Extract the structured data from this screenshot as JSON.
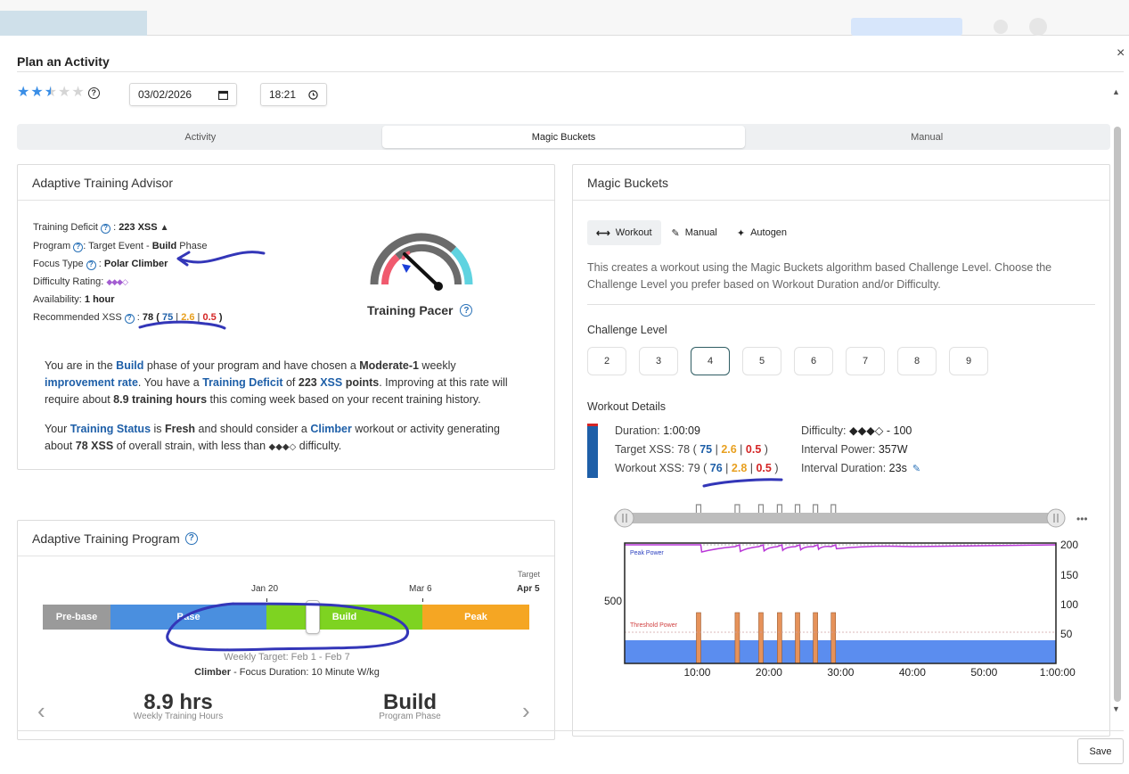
{
  "modal": {
    "title": "Plan an Activity",
    "save_label": "Save",
    "close_label": "×"
  },
  "header": {
    "rating": {
      "value": 2.5,
      "max": 5
    },
    "date": "03/02/2026",
    "time": "18:21"
  },
  "tabs": [
    {
      "label": "Activity",
      "active": false
    },
    {
      "label": "Magic Buckets",
      "active": true
    },
    {
      "label": "Manual",
      "active": false
    }
  ],
  "advisor": {
    "title": "Adaptive Training Advisor",
    "deficit_label": "Training Deficit",
    "deficit_value": "223 XSS",
    "program_label": "Program",
    "program_prefix": ": Target Event - ",
    "program_phase": "Build",
    "program_suffix": " Phase",
    "focus_label": "Focus Type",
    "focus_value": "Polar Climber",
    "difficulty_label": "Difficulty Rating:",
    "difficulty_value": "◆◆◆◇",
    "availability_label": "Availability:",
    "availability_value": "1 hour",
    "rec_label": "Recommended XSS",
    "rec_total": "78",
    "rec_low": "75",
    "rec_high": "2.6",
    "rec_peak": "0.5",
    "pacer_label": "Training Pacer",
    "para1": {
      "t1": "You are in the ",
      "phase": "Build",
      "t2": " phase of your program and have chosen a ",
      "choice": "Moderate-1",
      "t3": " weekly ",
      "rate": "improvement rate",
      "t4": ". You have a ",
      "deficit": "Training Deficit",
      "t5": " of ",
      "deficit_value": "223",
      "xss": "XSS",
      "points": " points",
      "t6": ". Improving at this rate will require about ",
      "hours": "8.9 training hours",
      "t7": " this coming week based on your recent training history."
    },
    "para2": {
      "t1": "Your ",
      "status": "Training Status",
      "t2": " is ",
      "status_value": "Fresh",
      "t3": " and should consider a ",
      "climber": "Climber",
      "t4": " workout or activity generating about ",
      "xss": "78 XSS",
      "t5": " of overall strain, with less than ",
      "diamonds": "◆◆◆◇",
      "t6": " difficulty."
    }
  },
  "program": {
    "title": "Adaptive Training Program",
    "phases": [
      {
        "name": "Pre-base",
        "color": "#9a9a9a"
      },
      {
        "name": "Base",
        "color": "#4a8fdf"
      },
      {
        "name": "Build",
        "color": "#7ed321"
      },
      {
        "name": "Peak",
        "color": "#f5a623"
      }
    ],
    "ticks": [
      {
        "label": "Jan 20"
      },
      {
        "label": "Mar 6"
      }
    ],
    "target_label": "Target",
    "target_date": "Apr 5",
    "current_position": 0.558,
    "weekly_target": "Weekly Target: Feb 1 - Feb 7",
    "focus_type": "Climber",
    "focus_rest": " - Focus Duration: 10 Minute W/kg",
    "hours_value": "8.9 hrs",
    "hours_caption": "Weekly Training Hours",
    "phase_value": "Build",
    "phase_caption": "Program Phase"
  },
  "buckets": {
    "title": "Magic Buckets",
    "subtabs": [
      {
        "label": "Workout",
        "icon": "dumbbell-icon",
        "active": true
      },
      {
        "label": "Manual",
        "icon": "pencil-icon",
        "active": false
      },
      {
        "label": "Autogen",
        "icon": "sparkle-icon",
        "active": false
      }
    ],
    "description": "This creates a workout using the Magic Buckets algorithm based Challenge Level. Choose the Challenge Level you prefer based on Workout Duration and/or Difficulty.",
    "challenge_title": "Challenge Level",
    "levels": [
      "2",
      "3",
      "4",
      "5",
      "6",
      "7",
      "8",
      "9"
    ],
    "selected_level": "4",
    "details_title": "Workout Details",
    "duration_label": "Duration:",
    "duration_value": "1:00:09",
    "target_label": "Target XSS:",
    "target_total": "78",
    "target_a": "75",
    "target_b": "2.6",
    "target_c": "0.5",
    "workout_label": "Workout XSS:",
    "workout_total": "79",
    "workout_a": "76",
    "workout_b": "2.8",
    "workout_c": "0.5",
    "difficulty_label": "Difficulty:",
    "difficulty_value": "◆◆◆◇ - 100",
    "ipower_label": "Interval Power:",
    "ipower_value": "357W",
    "iduration_label": "Interval Duration:",
    "iduration_value": "23s",
    "more_label": "•••"
  },
  "chart_data": {
    "type": "area",
    "x_ticks": [
      "10:00",
      "20:00",
      "30:00",
      "40:00",
      "50:00",
      "1:00:00"
    ],
    "y_left_ticks": [
      "500"
    ],
    "y_right_ticks": [
      "200",
      "150",
      "100",
      "50"
    ],
    "peak_label": "Peak Power",
    "threshold_label": "Threshold Power",
    "interval_starts_min": [
      10,
      15.4,
      18.7,
      21.3,
      23.8,
      26.3,
      28.8
    ],
    "total_min": 60.15
  }
}
